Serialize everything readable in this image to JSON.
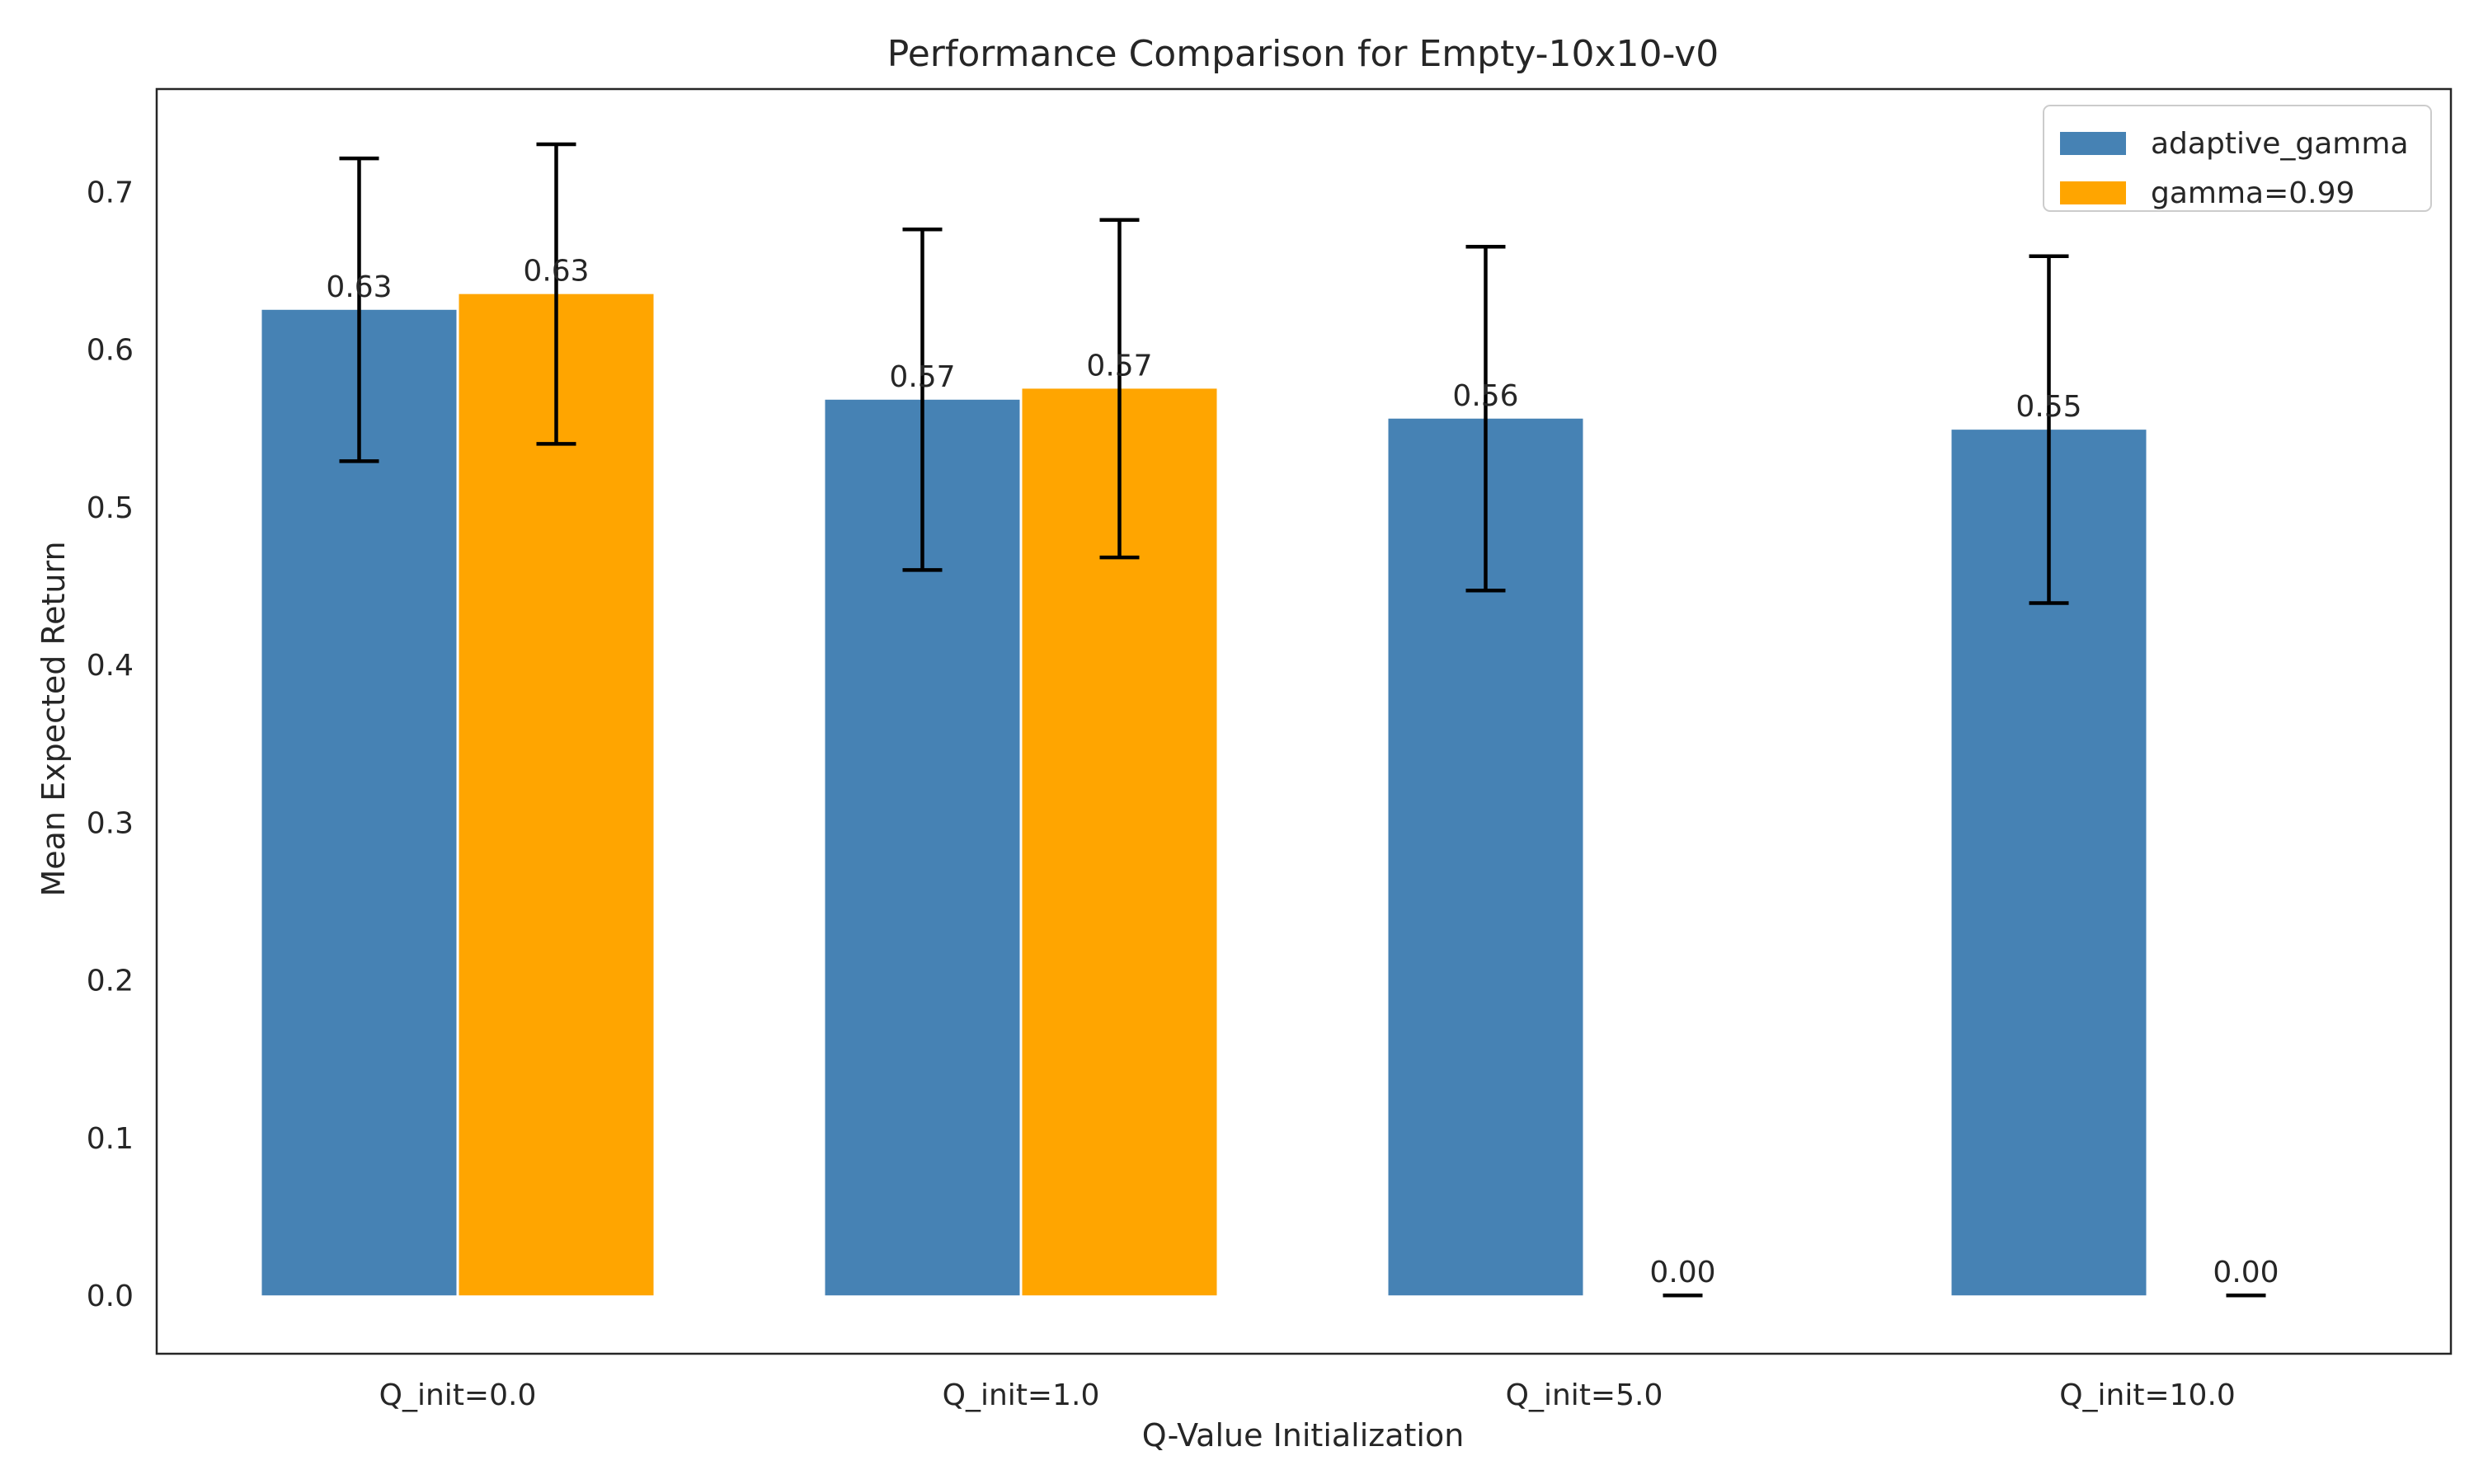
{
  "chart_data": {
    "type": "bar",
    "title": "Performance Comparison for Empty-10x10-v0",
    "xlabel": "Q-Value Initialization",
    "ylabel": "Mean Expected Return",
    "categories": [
      "Q_init=0.0",
      "Q_init=1.0",
      "Q_init=5.0",
      "Q_init=10.0"
    ],
    "ylim": [
      -0.037,
      0.765
    ],
    "yticks": [
      0.0,
      0.1,
      0.2,
      0.3,
      0.4,
      0.5,
      0.6,
      0.7
    ],
    "ytick_labels": [
      "0.0",
      "0.1",
      "0.2",
      "0.3",
      "0.4",
      "0.5",
      "0.6",
      "0.7"
    ],
    "grid": false,
    "legend_position": "top-right",
    "series": [
      {
        "name": "adaptive_gamma",
        "color": "#4682b4",
        "values": [
          0.625,
          0.568,
          0.556,
          0.549
        ],
        "errors": [
          0.096,
          0.108,
          0.109,
          0.11
        ],
        "labels": [
          "0.63",
          "0.57",
          "0.56",
          "0.55"
        ]
      },
      {
        "name": "gamma=0.99",
        "color": "#ffa500",
        "values": [
          0.635,
          0.575,
          0.0,
          0.0
        ],
        "errors": [
          0.095,
          0.107,
          0.0,
          0.0
        ],
        "labels": [
          "0.63",
          "0.57",
          "0.00",
          "0.00"
        ]
      }
    ]
  }
}
